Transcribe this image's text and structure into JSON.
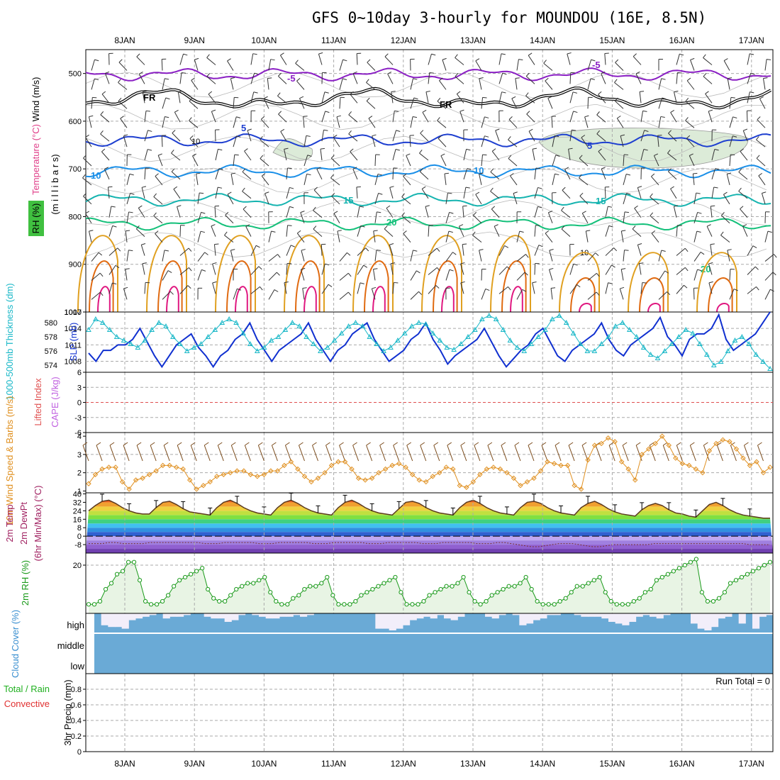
{
  "title": "GFS 0~10day 3-hourly for MOUNDOU (16E, 8.5N)",
  "day_labels": [
    "8JAN",
    "9JAN",
    "10JAN",
    "11JAN",
    "12JAN",
    "13JAN",
    "14JAN",
    "15JAN",
    "16JAN",
    "17JAN"
  ],
  "colors": {
    "purple": "#8a1fc4",
    "black": "#000000",
    "blue": "#1e3fd0",
    "skyblue": "#1a8fe8",
    "teal": "#16b4b0",
    "green": "#14c07a",
    "orange": "#e0a020",
    "darkorange": "#e06a10",
    "magenta": "#e01880",
    "slp": "#1030d0",
    "thick": "#1ab8c8",
    "wind10": "#e09020",
    "rh2m": "#1a9a1a",
    "cloud": "#6aaad6",
    "cloudgap": "#f2eefa",
    "cape_ref": "#e05050"
  },
  "chart_data": [
    {
      "type": "contour",
      "name": "upper-air",
      "ylabel_parts": [
        "Wind (m/s)",
        "Temperature (°C)",
        "RH (%)",
        "(m i l l i b a r s)"
      ],
      "y_ticks": [
        500,
        600,
        700,
        800,
        900,
        1000
      ],
      "ylim": [
        450,
        1000
      ],
      "isotherms": [
        {
          "label": "-5",
          "level_mb": 502
        },
        {
          "label": "FR",
          "level_mb": 555
        },
        {
          "label": "5",
          "level_mb": 640
        },
        {
          "label": "10",
          "level_mb": 705
        },
        {
          "label": "15",
          "level_mb": 765
        },
        {
          "label": "20",
          "level_mb": 815
        }
      ],
      "contour_labels": [
        "-5",
        "FR",
        "FR",
        "5",
        "5",
        "10",
        "10",
        "15",
        "15",
        "20",
        "20",
        "-5"
      ],
      "rh_labels": [
        "10",
        "10"
      ]
    },
    {
      "type": "line",
      "name": "thickness-slp",
      "ylabel_left": "1000-500mb Thickness (dm)",
      "ylabel_right": "SLP (mb)",
      "left_ticks": [
        574,
        576,
        578,
        580
      ],
      "right_ticks": [
        1008,
        1011,
        1014,
        1017
      ],
      "slp_ylim": [
        1006,
        1017
      ],
      "thick_ylim": [
        573,
        581.5
      ],
      "series": [
        {
          "name": "SLP",
          "values": [
            1009.5,
            1008,
            1010,
            1010,
            1011,
            1011,
            1012,
            1014,
            1011.5,
            1009,
            1007,
            1009,
            1011,
            1012,
            1013,
            1010.5,
            1009,
            1007,
            1009,
            1010,
            1012,
            1013,
            1015,
            1012,
            1010,
            1008,
            1010,
            1011,
            1012,
            1013,
            1015,
            1012,
            1010,
            1008,
            1010,
            1011,
            1013,
            1014,
            1015,
            1012,
            1010,
            1008,
            1009,
            1010,
            1012,
            1013,
            1015,
            1012,
            1010,
            1007.5,
            1009,
            1010,
            1011,
            1012,
            1014,
            1011.5,
            1009,
            1007,
            1008.5,
            1010,
            1011,
            1013,
            1014,
            1011.5,
            1009,
            1008,
            1010,
            1011,
            1012,
            1013,
            1015,
            1012,
            1010,
            1009,
            1011,
            1012,
            1013,
            1014,
            1016,
            1012.5,
            1011,
            1009,
            1012,
            1013,
            1013,
            1014,
            1016.5,
            1012,
            1010,
            1011,
            1012,
            1013,
            1015,
            1017
          ]
        },
        {
          "name": "Thickness",
          "values": [
            579,
            580.5,
            580,
            579,
            578,
            577.5,
            577,
            576.5,
            577.5,
            579,
            580,
            579.5,
            578,
            577,
            576,
            576.5,
            577,
            578,
            579,
            580,
            580.5,
            580,
            578.5,
            577,
            576,
            576.5,
            577.5,
            578,
            579,
            580,
            579.5,
            578,
            577,
            576,
            576.5,
            577.5,
            578.5,
            579.5,
            580,
            579.5,
            578,
            577,
            576,
            576.5,
            577.5,
            578.5,
            579.5,
            580,
            579.8,
            578.5,
            577.5,
            576.5,
            576.2,
            577,
            578,
            579,
            580.5,
            581,
            580.5,
            579,
            577.5,
            576.5,
            576,
            577,
            578,
            579,
            580.5,
            581,
            580,
            578.5,
            577,
            576,
            576,
            577,
            578,
            579.5,
            580,
            579,
            578,
            576.5,
            575.5,
            575,
            576,
            577,
            578,
            579,
            578.5,
            577,
            575.5,
            574,
            574.5,
            576,
            577.5,
            578,
            577,
            575.5,
            574.5,
            573.5
          ]
        }
      ]
    },
    {
      "type": "line",
      "name": "lifted-index-cape",
      "ylabel_left": "Lifted Index",
      "ylabel_right": "CAPE (J/kg)",
      "y_ticks": [
        6,
        3,
        0,
        -3,
        -6
      ],
      "ylim": [
        -6,
        6
      ]
    },
    {
      "type": "line",
      "name": "wind10m",
      "ylabel": "10m Wind Speed & Barbs (m/s)",
      "y_ticks": [
        1,
        2,
        3,
        4
      ],
      "ylim": [
        0.9,
        4.2
      ],
      "values": [
        1.4,
        1.9,
        2.2,
        2.3,
        2.3,
        1.5,
        1.1,
        1.6,
        1.7,
        1.9,
        2.1,
        2.4,
        2.4,
        2.3,
        2.2,
        1.6,
        1.1,
        1.3,
        1.5,
        1.8,
        1.9,
        2.0,
        2.1,
        2.1,
        1.9,
        1.8,
        1.9,
        2.1,
        2.1,
        2.4,
        2.6,
        2.2,
        1.8,
        1.5,
        1.7,
        2.0,
        2.4,
        2.6,
        2.6,
        2.2,
        1.7,
        1.6,
        1.7,
        2.0,
        2.2,
        2.4,
        2.5,
        2.3,
        1.9,
        1.6,
        1.5,
        1.8,
        2.0,
        2.3,
        2.2,
        1.3,
        1.2,
        1.5,
        1.9,
        2.2,
        2.3,
        2.2,
        2.0,
        1.7,
        1.3,
        1.5,
        1.7,
        2.1,
        2.6,
        2.5,
        2.4,
        2.4,
        1.3,
        1.1,
        2.7,
        3.5,
        3.6,
        3.9,
        3.7,
        2.6,
        2.2,
        1.6,
        3.0,
        3.3,
        3.6,
        4.0,
        3.5,
        2.8,
        2.5,
        2.4,
        2.2,
        2.0,
        3.2,
        3.6,
        3.8,
        3.7,
        3.3,
        2.8,
        2.4,
        2.6,
        2.0,
        2.3
      ]
    },
    {
      "type": "area",
      "name": "temp-dewpoint",
      "ylabel_parts": [
        "2m Temp",
        "2m DewPt",
        "(6hr Min/Max) (°C)"
      ],
      "y_ticks": [
        40,
        32,
        24,
        16,
        8,
        0,
        -8
      ],
      "ylim": [
        -16,
        41
      ],
      "temp": [
        24,
        29,
        33,
        34,
        31,
        27,
        24,
        22,
        21,
        21,
        27,
        32,
        33,
        30,
        26,
        23,
        22,
        21,
        20,
        27,
        32,
        34,
        31,
        27,
        24,
        22,
        21,
        20,
        27,
        32,
        34,
        31,
        27,
        24,
        22,
        21,
        20,
        27,
        32,
        34,
        31,
        27,
        24,
        22,
        21,
        20,
        26,
        32,
        33,
        31,
        27,
        24,
        22,
        21,
        20,
        27,
        32,
        34,
        31,
        27,
        24,
        22,
        21,
        20,
        27,
        32,
        33,
        31,
        27,
        24,
        22,
        21,
        20,
        27,
        31,
        33,
        30,
        26,
        23,
        21,
        20,
        19,
        25,
        29,
        31,
        29,
        25,
        22,
        21,
        19,
        18,
        24,
        30,
        32,
        29,
        25,
        22,
        20,
        19,
        18,
        17,
        17
      ],
      "dewpt": [
        -7,
        -7,
        -7,
        -6,
        -6,
        -7,
        -7,
        -7,
        -7,
        -6,
        -6,
        -6,
        -6,
        -6,
        -6,
        -6,
        -6,
        -7,
        -7,
        -7,
        -6,
        -6,
        -6,
        -6,
        -6,
        -7,
        -7,
        -7,
        -6,
        -6,
        -6,
        -6,
        -6,
        -7,
        -7,
        -7,
        -6,
        -6,
        -6,
        -6,
        -6,
        -7,
        -7,
        -7,
        -6,
        -6,
        -6,
        -6,
        -6,
        -7,
        -7,
        -7,
        -6,
        -6,
        -6,
        -6,
        -6,
        -7,
        -7,
        -7,
        -6,
        -6,
        -7,
        -8,
        -9,
        -10,
        -10,
        -9,
        -8,
        -7,
        -7,
        -7,
        -8,
        -9,
        -10,
        -10,
        -9,
        -8,
        -8,
        -8,
        -8,
        -8,
        -8,
        -7,
        -7,
        -7,
        -7,
        -7,
        -7,
        -7,
        -7,
        -7,
        -7,
        -7,
        -7,
        -7,
        -7,
        -8,
        -8,
        -8,
        -8
      ]
    },
    {
      "type": "area",
      "name": "rh2m",
      "ylabel": "2m RH (%)",
      "y_ticks": [
        20
      ],
      "ylim": [
        4,
        24
      ],
      "values": [
        7,
        7,
        8,
        12,
        14,
        17,
        18,
        21,
        21,
        15,
        8,
        7,
        7,
        8,
        10,
        13,
        15,
        16,
        17,
        18,
        19,
        12,
        9,
        8,
        8,
        10,
        12,
        13,
        14,
        14,
        15,
        16,
        11,
        8,
        7,
        7,
        9,
        10,
        12,
        13,
        13,
        14,
        16,
        10,
        7,
        7,
        7,
        8,
        10,
        11,
        12,
        13,
        14,
        15,
        16,
        11,
        7,
        7,
        7,
        8,
        10,
        11,
        12,
        13,
        13,
        14,
        16,
        11,
        8,
        7,
        8,
        10,
        11,
        12,
        13,
        13,
        14,
        16,
        12,
        8,
        7,
        7,
        7,
        8,
        9,
        11,
        13,
        13,
        14,
        15,
        16,
        11,
        8,
        7,
        7,
        7,
        8,
        9,
        11,
        12,
        15,
        16,
        17,
        18,
        19,
        20,
        21,
        22,
        11,
        8,
        8,
        9,
        11,
        14,
        15,
        16,
        17,
        18,
        19,
        20,
        21
      ]
    },
    {
      "type": "heatmap",
      "name": "cloud-cover",
      "ylabel": "Cloud Cover (%)",
      "levels": [
        "high",
        "middle",
        "low"
      ],
      "high_gaps": [
        0,
        0.7,
        0.8,
        0.8,
        0.9,
        0.4,
        0.3,
        0.2,
        0.1,
        0,
        0.3,
        0.2,
        0.2,
        0.1,
        0,
        0,
        0.2,
        0.3,
        0.3,
        0.5,
        0.4,
        0.1,
        0,
        0.1,
        0.2,
        0.3,
        0.3,
        0.2,
        0.2,
        0.1,
        0.2,
        0.1,
        0,
        0,
        0,
        0,
        0,
        0,
        0,
        0,
        0,
        0.9,
        0.9,
        1,
        0.9,
        0.7,
        0.4,
        0.3,
        0.2,
        0.3,
        0.1,
        0.3,
        0.4,
        0.2,
        0,
        0,
        0,
        0.2,
        0.3,
        0.1,
        0,
        0.1,
        0.7,
        0.6,
        0.4,
        0.3,
        0.1,
        0.1,
        0,
        0,
        0.1,
        0.2,
        0.2,
        0.2,
        0.3,
        0.5,
        0.6,
        0.7,
        0.5,
        0.2,
        0.1,
        0.2,
        0.3,
        0.1,
        0,
        0,
        0,
        0.6,
        0.9,
        1,
        0.8,
        0.3,
        0.2,
        0,
        0.6,
        0,
        0.9,
        0.2,
        0.1
      ]
    },
    {
      "type": "bar",
      "name": "precip",
      "ylabel_parts": [
        "3hr Precip (mm)",
        "Total / Rain",
        "Convective"
      ],
      "y_ticks": [
        0,
        0.2,
        0.4,
        0.6,
        0.8
      ],
      "ylim": [
        0,
        1
      ],
      "run_total": "Run Total = 0",
      "values": []
    }
  ]
}
